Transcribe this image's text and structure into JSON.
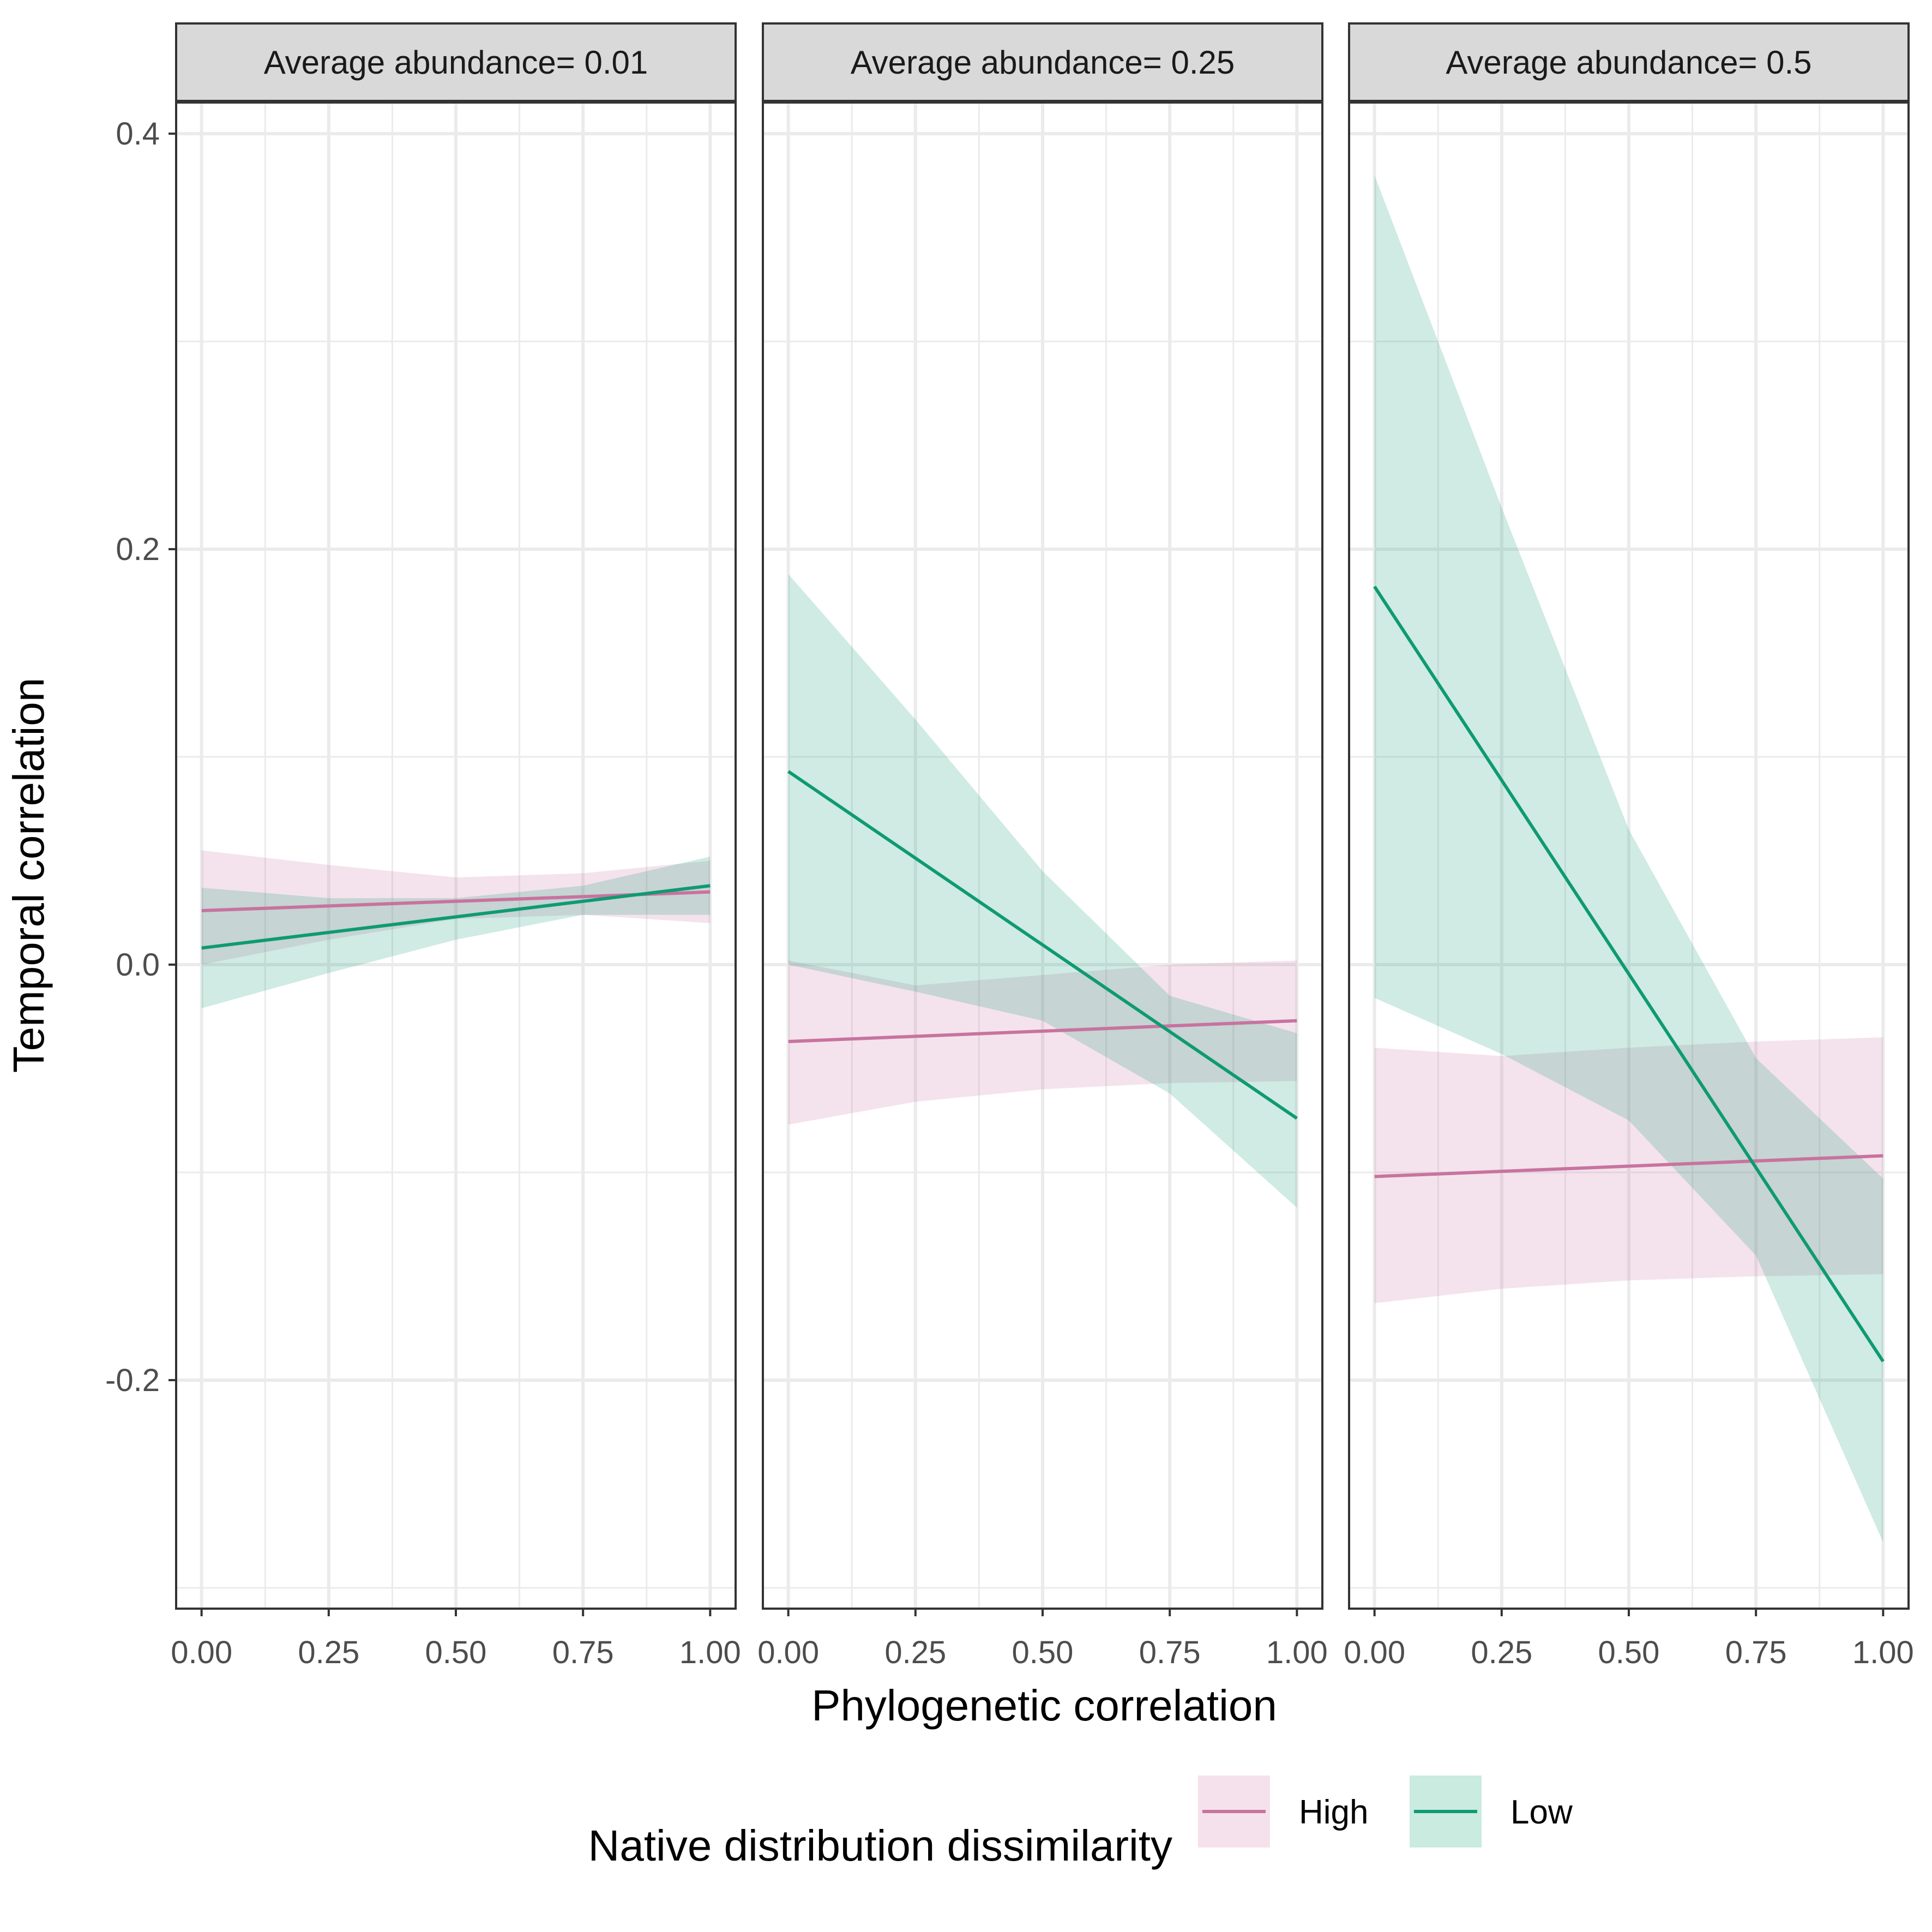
{
  "chart_data": {
    "type": "line",
    "xlabel": "Phylogenetic correlation",
    "ylabel": "Temporal correlation",
    "x_ticks": [
      "0.00",
      "0.25",
      "0.50",
      "0.75",
      "1.00"
    ],
    "y_ticks": [
      "-0.2",
      "0.0",
      "0.2",
      "0.4"
    ],
    "xlim": [
      -0.05,
      1.05
    ],
    "ylim": [
      -0.31,
      0.415
    ],
    "grid": true,
    "legend": {
      "title": "Native distribution dissimilarity",
      "position": "bottom",
      "items": [
        {
          "label": "High",
          "line_color": "#c8739f",
          "fill_color": "#f5e1ec"
        },
        {
          "label": "Low",
          "line_color": "#0f9a72",
          "fill_color": "#c9ebe0"
        }
      ]
    },
    "panels": [
      {
        "strip": "Average abundance= 0.01",
        "series": [
          {
            "name": "High",
            "x": [
              0,
              1
            ],
            "y": [
              0.026,
              0.035
            ],
            "band_x": [
              0,
              0.25,
              0.5,
              0.75,
              1
            ],
            "band_lower": [
              0.0,
              0.012,
              0.022,
              0.024,
              0.02
            ],
            "band_upper": [
              0.055,
              0.048,
              0.042,
              0.044,
              0.05
            ]
          },
          {
            "name": "Low",
            "x": [
              0,
              1
            ],
            "y": [
              0.008,
              0.038
            ],
            "band_x": [
              0,
              0.25,
              0.5,
              0.75,
              1
            ],
            "band_lower": [
              -0.021,
              -0.004,
              0.012,
              0.024,
              0.024
            ],
            "band_upper": [
              0.037,
              0.032,
              0.032,
              0.038,
              0.052
            ]
          }
        ]
      },
      {
        "strip": "Average abundance= 0.25",
        "series": [
          {
            "name": "High",
            "x": [
              0,
              1
            ],
            "y": [
              -0.037,
              -0.027
            ],
            "band_x": [
              0,
              0.25,
              0.5,
              0.75,
              1
            ],
            "band_lower": [
              -0.077,
              -0.066,
              -0.06,
              -0.057,
              -0.056
            ],
            "band_upper": [
              0.002,
              -0.01,
              -0.005,
              0.0,
              0.002
            ]
          },
          {
            "name": "Low",
            "x": [
              0,
              1
            ],
            "y": [
              0.093,
              -0.074
            ],
            "band_x": [
              0,
              0.25,
              0.5,
              0.75,
              1
            ],
            "band_lower": [
              0.0,
              -0.013,
              -0.027,
              -0.062,
              -0.117
            ],
            "band_upper": [
              0.188,
              0.118,
              0.045,
              -0.015,
              -0.033
            ]
          }
        ]
      },
      {
        "strip": "Average abundance= 0.5",
        "series": [
          {
            "name": "High",
            "x": [
              0,
              1
            ],
            "y": [
              -0.102,
              -0.092
            ],
            "band_x": [
              0,
              0.25,
              0.5,
              0.75,
              1
            ],
            "band_lower": [
              -0.163,
              -0.156,
              -0.152,
              -0.15,
              -0.149
            ],
            "band_upper": [
              -0.04,
              -0.044,
              -0.04,
              -0.037,
              -0.035
            ]
          },
          {
            "name": "Low",
            "x": [
              0,
              1
            ],
            "y": [
              0.182,
              -0.191
            ],
            "band_x": [
              0,
              0.25,
              0.5,
              0.75,
              1
            ],
            "band_lower": [
              -0.016,
              -0.043,
              -0.075,
              -0.14,
              -0.278
            ],
            "band_upper": [
              0.38,
              0.22,
              0.065,
              -0.045,
              -0.103
            ]
          }
        ]
      }
    ]
  }
}
